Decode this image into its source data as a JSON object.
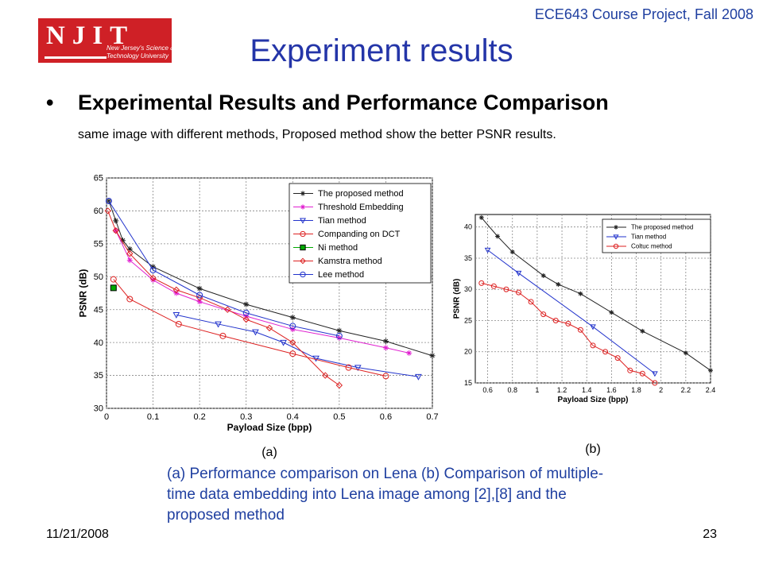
{
  "header": {
    "course": "ECE643 Course Project, Fall 2008",
    "title": "Experiment results",
    "logo": {
      "big": "NJIT",
      "line1": "New Jersey's Science &",
      "line2": "Technology University"
    }
  },
  "bullet": {
    "marker": "•",
    "heading": "Experimental Results and Performance Comparison",
    "subtext": "same image with different methods, Proposed method show the better PSNR results."
  },
  "caption": "(a) Performance comparison on Lena (b) Comparison of multiple-time data embedding into Lena image among [2],[8] and the proposed method",
  "footer": {
    "date": "11/21/2008",
    "page": "23"
  },
  "colors": {
    "title": "#2435a8",
    "caption": "#1f3fa0",
    "logo_red": "#cf2026"
  },
  "chart_data": [
    {
      "type": "line",
      "panel_label": "(a)",
      "xlabel": "Payload Size (bpp)",
      "ylabel": "PSNR (dB)",
      "xlim": [
        0,
        0.7
      ],
      "ylim": [
        30,
        65
      ],
      "xticks": [
        0,
        0.1,
        0.2,
        0.3,
        0.4,
        0.5,
        0.6,
        0.7
      ],
      "yticks": [
        30,
        35,
        40,
        45,
        50,
        55,
        60,
        65
      ],
      "grid": true,
      "legend_position": "top-right",
      "series": [
        {
          "name": "The proposed method",
          "color": "#222222",
          "marker": "star",
          "x": [
            0.005,
            0.02,
            0.035,
            0.05,
            0.1,
            0.2,
            0.3,
            0.4,
            0.5,
            0.6,
            0.7
          ],
          "y": [
            61.5,
            58.5,
            55.5,
            54.2,
            51.5,
            48.2,
            45.8,
            43.8,
            41.8,
            40.2,
            38
          ]
        },
        {
          "name": "Threshold Embedding",
          "color": "#e020d0",
          "marker": "star",
          "x": [
            0.02,
            0.05,
            0.1,
            0.15,
            0.2,
            0.3,
            0.4,
            0.5,
            0.6,
            0.65
          ],
          "y": [
            57,
            52.5,
            49.5,
            47.5,
            46.2,
            44,
            42,
            40.7,
            39.2,
            38.4
          ]
        },
        {
          "name": "Tian method",
          "color": "#2233cc",
          "marker": "triangle-down",
          "x": [
            0.15,
            0.24,
            0.32,
            0.38,
            0.45,
            0.54,
            0.67
          ],
          "y": [
            44.2,
            42.8,
            41.6,
            40,
            37.6,
            36.2,
            34.8
          ]
        },
        {
          "name": "Companding on DCT",
          "color": "#dd2222",
          "marker": "circle",
          "x": [
            0.015,
            0.05,
            0.155,
            0.25,
            0.4,
            0.52,
            0.6
          ],
          "y": [
            49.6,
            46.6,
            42.8,
            41,
            38.3,
            36.2,
            34.9
          ]
        },
        {
          "name": "Ni method",
          "color": "#00aa00",
          "marker": "square",
          "x": [
            0.015
          ],
          "y": [
            48.3
          ]
        },
        {
          "name": "Kamstra method",
          "color": "#dd2222",
          "marker": "diamond",
          "x": [
            0.003,
            0.02,
            0.05,
            0.1,
            0.15,
            0.2,
            0.26,
            0.3,
            0.35,
            0.4,
            0.47,
            0.5
          ],
          "y": [
            60,
            57,
            53.5,
            49.8,
            48,
            46.8,
            45,
            43.5,
            42.2,
            40,
            35,
            33.5
          ]
        },
        {
          "name": "Lee method",
          "color": "#2233cc",
          "marker": "circle",
          "x": [
            0.005,
            0.1,
            0.2,
            0.3,
            0.4,
            0.5
          ],
          "y": [
            61.5,
            51,
            47.2,
            44.5,
            42.5,
            41
          ]
        }
      ]
    },
    {
      "type": "line",
      "panel_label": "(b)",
      "xlabel": "Payload Size (bpp)",
      "ylabel": "PSNR (dB)",
      "xlim": [
        0.5,
        2.4
      ],
      "ylim": [
        15,
        42
      ],
      "xticks": [
        0.6,
        0.8,
        1,
        1.2,
        1.4,
        1.6,
        1.8,
        2,
        2.2,
        2.4
      ],
      "yticks": [
        15,
        20,
        25,
        30,
        35,
        40
      ],
      "grid": true,
      "legend_position": "top-right",
      "series": [
        {
          "name": "The proposed method",
          "color": "#222222",
          "marker": "star",
          "x": [
            0.55,
            0.68,
            0.8,
            1.05,
            1.17,
            1.35,
            1.6,
            1.85,
            2.2,
            2.4
          ],
          "y": [
            41.5,
            38.5,
            36,
            32.2,
            30.8,
            29.3,
            26.3,
            23.3,
            19.8,
            17
          ]
        },
        {
          "name": "Tian method",
          "color": "#2233cc",
          "marker": "triangle-down",
          "x": [
            0.6,
            0.85,
            1.45,
            1.95
          ],
          "y": [
            36.3,
            32.6,
            24,
            16.5
          ]
        },
        {
          "name": "Coltuc method",
          "color": "#dd2222",
          "marker": "circle",
          "x": [
            0.55,
            0.65,
            0.75,
            0.85,
            0.95,
            1.05,
            1.15,
            1.25,
            1.35,
            1.45,
            1.55,
            1.65,
            1.75,
            1.85,
            1.95
          ],
          "y": [
            31,
            30.5,
            30,
            29.5,
            28,
            26,
            25,
            24.5,
            23.5,
            21,
            20,
            19,
            17,
            16.5,
            15
          ]
        }
      ]
    }
  ]
}
